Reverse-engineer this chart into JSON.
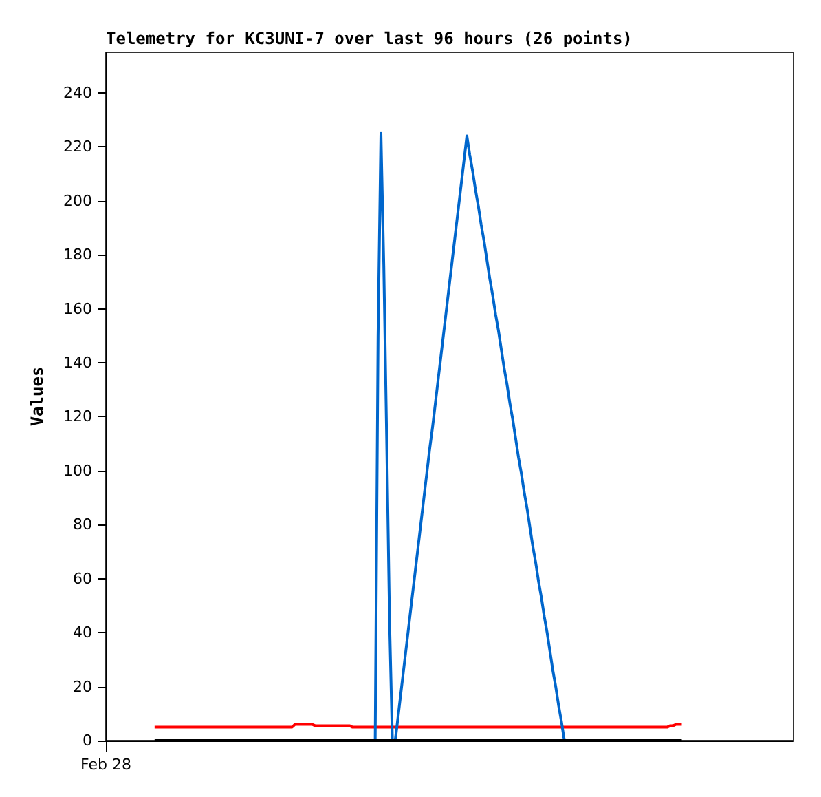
{
  "chart_data": {
    "type": "line",
    "title": "Telemetry for KC3UNI-7 over last 96 hours (26 points)",
    "ylabel": "Values",
    "categories": [
      "Feb 28",
      null,
      null,
      null,
      null,
      null,
      null,
      null,
      null,
      null,
      null,
      null,
      null,
      null,
      null,
      null,
      null,
      null,
      null,
      null,
      null,
      null,
      null,
      null,
      null,
      null,
      null,
      null,
      null,
      null,
      null,
      null,
      null,
      null,
      null,
      null,
      null,
      null,
      null,
      null,
      null,
      null,
      null,
      null,
      null,
      null,
      null,
      null,
      null,
      null,
      null,
      null,
      null,
      null,
      null,
      null,
      null,
      null,
      null,
      null,
      null,
      null,
      null,
      null,
      null,
      null,
      null,
      null,
      null,
      null,
      null,
      null,
      null,
      null,
      null,
      null,
      null,
      null,
      null,
      null,
      null,
      null,
      null,
      null,
      null,
      null,
      null,
      null,
      null,
      null,
      null,
      null,
      null,
      null,
      null,
      null,
      null,
      null,
      null,
      null,
      null,
      null,
      null,
      null,
      null,
      null,
      null,
      null,
      null,
      null,
      null,
      null,
      null,
      null,
      null,
      null,
      null,
      null,
      null,
      null,
      null,
      null,
      null,
      null,
      null,
      null,
      null,
      null,
      null,
      null,
      null,
      null,
      null,
      null,
      null,
      null,
      null,
      null,
      null,
      null,
      null,
      null,
      null,
      null,
      null,
      null,
      null,
      null,
      null,
      null,
      null,
      null,
      null,
      null,
      null,
      null,
      null,
      null,
      null,
      null,
      null,
      null,
      null,
      null,
      null,
      null,
      null,
      null,
      null,
      null,
      null,
      null,
      null,
      null,
      null,
      null,
      null,
      null,
      null,
      null,
      null,
      null,
      null,
      null,
      null,
      null,
      null,
      null,
      null,
      null,
      null,
      null,
      null,
      null,
      null,
      null,
      null,
      null,
      null,
      null,
      null,
      null,
      null,
      null,
      null,
      null,
      null,
      null,
      null,
      null,
      null,
      null,
      null,
      null,
      null,
      null,
      null,
      null,
      null,
      null,
      null,
      null,
      null,
      null,
      null,
      null,
      null,
      null,
      null,
      null,
      null,
      null,
      null,
      null,
      null,
      null,
      null,
      null,
      null,
      null,
      null
    ],
    "ylim": [
      0,
      255
    ],
    "yticks": [
      0,
      20,
      40,
      60,
      80,
      100,
      120,
      140,
      160,
      180,
      200,
      220,
      240
    ],
    "grid": false,
    "marker": "none",
    "line_style": "solid",
    "series": [
      {
        "color": "#ff0000",
        "values": [
          null,
          null,
          null,
          null,
          null,
          null,
          null,
          null,
          null,
          null,
          null,
          null,
          null,
          null,
          null,
          null,
          null,
          5,
          5,
          5,
          5,
          5,
          5,
          5,
          5,
          5,
          5,
          5,
          5,
          5,
          5,
          5,
          5,
          5,
          5,
          5,
          5,
          5,
          5,
          5,
          5,
          5,
          5,
          5,
          5,
          5,
          5,
          5,
          5,
          5,
          5,
          5,
          5,
          5,
          5,
          5,
          5,
          5,
          5,
          5,
          5,
          5,
          5,
          5,
          5,
          5,
          6,
          6,
          6,
          6,
          6,
          6,
          6,
          5.5,
          5.5,
          5.5,
          5.5,
          5.5,
          5.5,
          5.5,
          5.5,
          5.5,
          5.5,
          5.5,
          5.5,
          5.5,
          5,
          5,
          5,
          5,
          5,
          5,
          5,
          5,
          5,
          5,
          5,
          5,
          5,
          5,
          5,
          5,
          5,
          5,
          5,
          5,
          5,
          5,
          5,
          5,
          5,
          5,
          5,
          5,
          5,
          5,
          5,
          5,
          5,
          5,
          5,
          5,
          5,
          5,
          5,
          5,
          5,
          5,
          5,
          5,
          5,
          5,
          5,
          5,
          5,
          5,
          5,
          5,
          5,
          5,
          5,
          5,
          5,
          5,
          5,
          5,
          5,
          5,
          5,
          5,
          5,
          5,
          5,
          5,
          5,
          5,
          5,
          5,
          5,
          5,
          5,
          5,
          5,
          5,
          5,
          5,
          5,
          5,
          5,
          5,
          5,
          5,
          5,
          5,
          5,
          5,
          5,
          5,
          5,
          5,
          5,
          5,
          5,
          5,
          5,
          5,
          5,
          5,
          5,
          5,
          5,
          5,
          5,
          5,
          5,
          5,
          5,
          5.5,
          5.5,
          6,
          6,
          6,
          null,
          null,
          null,
          null,
          null,
          null,
          null,
          null,
          null,
          null,
          null,
          null,
          null,
          null,
          null,
          null,
          null,
          null,
          null,
          null,
          null,
          null,
          null,
          null,
          null,
          null,
          null,
          null,
          null,
          null,
          null,
          null,
          null,
          null,
          null,
          null,
          null,
          null,
          null
        ]
      },
      {
        "color": "#0066cc",
        "values": [
          null,
          null,
          null,
          null,
          null,
          null,
          null,
          null,
          null,
          null,
          null,
          null,
          null,
          null,
          null,
          null,
          null,
          null,
          null,
          null,
          null,
          null,
          null,
          null,
          null,
          null,
          null,
          null,
          null,
          null,
          null,
          null,
          null,
          null,
          null,
          null,
          null,
          null,
          null,
          null,
          null,
          null,
          null,
          null,
          null,
          null,
          null,
          null,
          null,
          null,
          null,
          null,
          null,
          null,
          null,
          null,
          null,
          null,
          null,
          null,
          null,
          null,
          null,
          null,
          null,
          null,
          null,
          null,
          null,
          null,
          null,
          null,
          null,
          null,
          null,
          null,
          null,
          null,
          null,
          null,
          null,
          null,
          null,
          null,
          null,
          null,
          null,
          null,
          null,
          null,
          null,
          null,
          null,
          null,
          0,
          150,
          225,
          176,
          112,
          45,
          0,
          0,
          9,
          18,
          27,
          36,
          45,
          54,
          63,
          72,
          81,
          90,
          99,
          108,
          116,
          125,
          134,
          143,
          152,
          161,
          170,
          179,
          188,
          197,
          206,
          215,
          224,
          217,
          211,
          204,
          198,
          191,
          185,
          178,
          171,
          165,
          158,
          152,
          145,
          138,
          132,
          125,
          119,
          112,
          105,
          99,
          92,
          86,
          79,
          72,
          66,
          59,
          53,
          46,
          40,
          33,
          26,
          20,
          13,
          7,
          0,
          null,
          null,
          null,
          null,
          null,
          null,
          null,
          null,
          null,
          null,
          null,
          null,
          null,
          null,
          null,
          null,
          null,
          null,
          null,
          null,
          null,
          null,
          null,
          null,
          null,
          null,
          null,
          null,
          null,
          null,
          null,
          null,
          null,
          null,
          null,
          null,
          null,
          null,
          null,
          null,
          null,
          null,
          null,
          null,
          null,
          null,
          null,
          null,
          null,
          null,
          null,
          null,
          null,
          null,
          null,
          null,
          null,
          null,
          null,
          null,
          null,
          null,
          null,
          null,
          null,
          null,
          null,
          null,
          null,
          null,
          null,
          null,
          null,
          null,
          null,
          null,
          null,
          null,
          null,
          null
        ]
      },
      {
        "color": "#000000",
        "values": [
          null,
          null,
          null,
          null,
          null,
          null,
          null,
          null,
          null,
          null,
          null,
          null,
          null,
          null,
          null,
          null,
          null,
          0,
          0,
          0,
          0,
          0,
          0,
          0,
          0,
          0,
          0,
          0,
          0,
          0,
          0,
          0,
          0,
          0,
          0,
          0,
          0,
          0,
          0,
          0,
          0,
          0,
          0,
          0,
          0,
          0,
          0,
          0,
          0,
          0,
          0,
          0,
          0,
          0,
          0,
          0,
          0,
          0,
          0,
          0,
          0,
          0,
          0,
          0,
          0,
          0,
          0,
          0,
          0,
          0,
          0,
          0,
          0,
          0,
          0,
          0,
          0,
          0,
          0,
          0,
          0,
          0,
          0,
          0,
          0,
          0,
          0,
          0,
          0,
          0,
          0,
          0,
          0,
          0,
          0,
          0,
          0,
          0,
          0,
          0,
          0,
          0,
          0,
          0,
          0,
          0,
          0,
          0,
          0,
          0,
          0,
          0,
          0,
          0,
          0,
          0,
          0,
          0,
          0,
          0,
          0,
          0,
          0,
          0,
          0,
          0,
          0,
          0,
          0,
          0,
          0,
          0,
          0,
          0,
          0,
          0,
          0,
          0,
          0,
          0,
          0,
          0,
          0,
          0,
          0,
          0,
          0,
          0,
          0,
          0,
          0,
          0,
          0,
          0,
          0,
          0,
          0,
          0,
          0,
          0,
          0,
          0,
          0,
          0,
          0,
          0,
          0,
          0,
          0,
          0,
          0,
          0,
          0,
          0,
          0,
          0,
          0,
          0,
          0,
          0,
          0,
          0,
          0,
          0,
          0,
          0,
          0,
          0,
          0,
          0,
          0,
          0,
          0,
          0,
          0,
          0,
          0,
          0,
          0,
          0,
          0,
          0,
          null,
          null,
          null,
          null,
          null,
          null,
          null,
          null,
          null,
          null,
          null,
          null,
          null,
          null,
          null,
          null,
          null,
          null,
          null,
          null,
          null,
          null,
          null,
          null,
          null,
          null,
          null,
          null,
          null,
          null,
          null,
          null,
          null,
          null,
          null,
          null,
          null,
          null,
          null
        ]
      }
    ]
  }
}
